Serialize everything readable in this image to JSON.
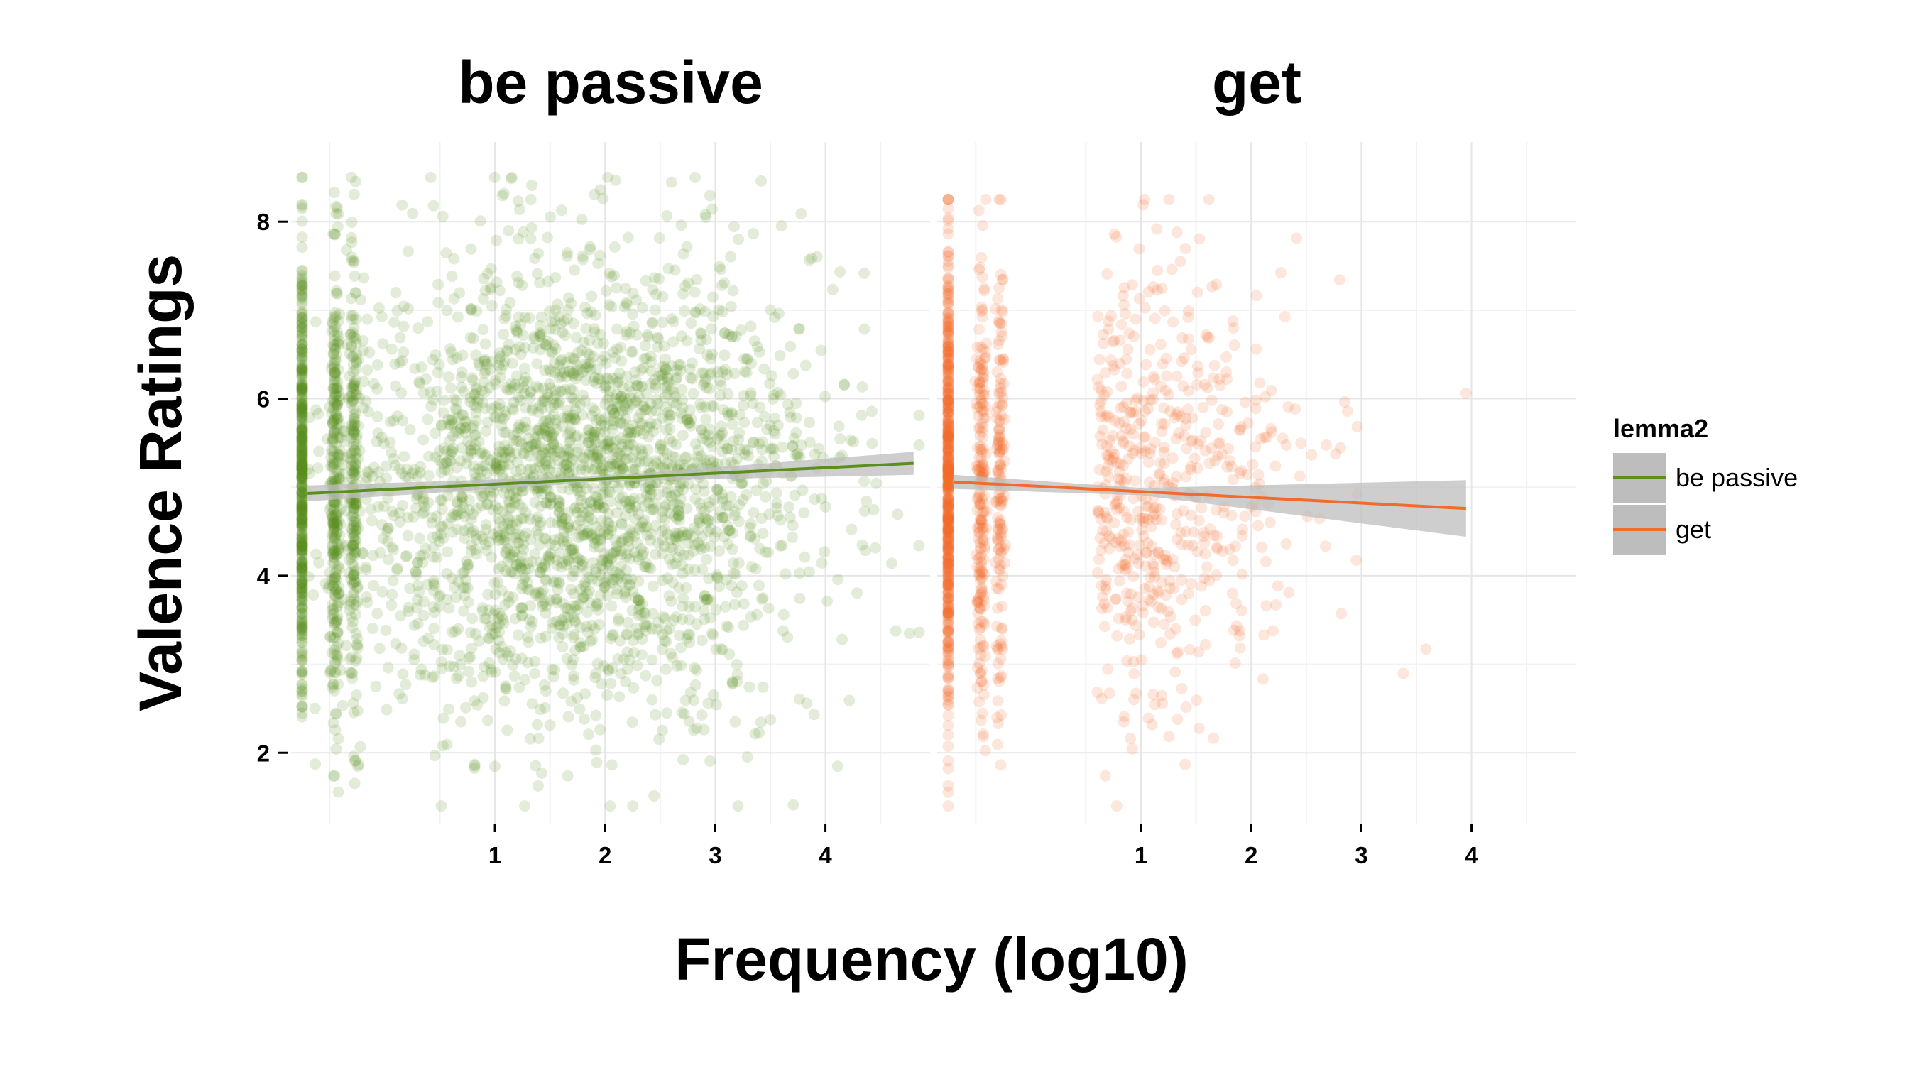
{
  "chart_data": {
    "type": "scatter",
    "xlabel": "Frequency (log10)",
    "ylabel": "Valence Ratings",
    "xlim": [
      -0.85,
      4.95
    ],
    "ylim": [
      1.2,
      8.9
    ],
    "x_ticks": [
      "1",
      "2",
      "3",
      "4"
    ],
    "y_ticks": [
      "2",
      "4",
      "6",
      "8"
    ],
    "grid": true,
    "legend": {
      "title": "lemma2",
      "position": "right"
    },
    "smooth": "linear fit with confidence band",
    "colors": {
      "be passive": "#5a8f1e",
      "get": "#f26b2c",
      "band": "#bdbdbd",
      "grid": "#e6e6e6"
    },
    "series": [
      {
        "name": "be passive",
        "facet_title": "be passive",
        "x_range": [
          -0.75,
          4.85
        ],
        "fit": {
          "x": [
            -0.7,
            4.8
          ],
          "y": [
            4.93,
            5.27
          ]
        },
        "band_halfwidth": {
          "x": [
            -0.7,
            2.0,
            4.8
          ],
          "w": [
            0.09,
            0.03,
            0.13
          ]
        },
        "points_summary": {
          "approx_count": 3500,
          "y_range": [
            1.4,
            8.5
          ],
          "x_range": [
            -0.75,
            4.85
          ]
        }
      },
      {
        "name": "get",
        "facet_title": "get",
        "x_range": [
          -0.75,
          3.95
        ],
        "fit": {
          "x": [
            -0.7,
            3.95
          ],
          "y": [
            5.06,
            4.76
          ]
        },
        "band_halfwidth": {
          "x": [
            -0.7,
            1.0,
            3.95
          ],
          "w": [
            0.08,
            0.04,
            0.32
          ]
        },
        "points_summary": {
          "approx_count": 1400,
          "y_range": [
            1.4,
            8.25
          ],
          "x_range": [
            -0.75,
            3.95
          ]
        }
      }
    ]
  }
}
